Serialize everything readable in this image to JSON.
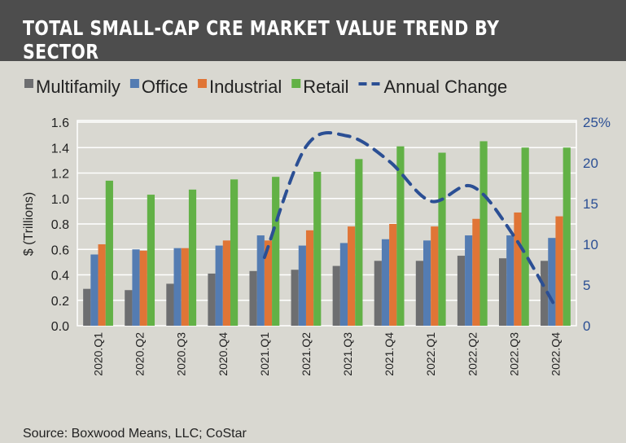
{
  "title": "TOTAL SMALL-CAP CRE MARKET VALUE TREND BY SECTOR",
  "source": "Source: Boxwood Means, LLC; CoStar",
  "chart_data": {
    "type": "bar",
    "title": "TOTAL SMALL-CAP CRE MARKET VALUE TREND BY SECTOR",
    "categories": [
      "2020.Q1",
      "2020.Q2",
      "2020.Q3",
      "2020.Q4",
      "2021.Q1",
      "2021.Q2",
      "2021.Q3",
      "2021.Q4",
      "2022.Q1",
      "2022.Q2",
      "2022.Q3",
      "2022.Q4"
    ],
    "ylabel": "$ (Trillions)",
    "ylim": [
      0,
      1.6
    ],
    "yticks": [
      "0.0",
      "0.2",
      "0.4",
      "0.6",
      "0.8",
      "1.0",
      "1.2",
      "1.4",
      "1.6"
    ],
    "y2lim": [
      0,
      25
    ],
    "y2ticks": [
      "0",
      "5",
      "10",
      "15",
      "20",
      "25%"
    ],
    "grid": true,
    "legend": "top",
    "series": [
      {
        "name": "Multifamily",
        "type": "bar",
        "axis": "left",
        "color": "#6d6e70",
        "values": [
          0.29,
          0.28,
          0.33,
          0.41,
          0.43,
          0.44,
          0.47,
          0.51,
          0.51,
          0.55,
          0.53,
          0.51
        ]
      },
      {
        "name": "Office",
        "type": "bar",
        "axis": "left",
        "color": "#547cb2",
        "values": [
          0.56,
          0.6,
          0.61,
          0.63,
          0.71,
          0.63,
          0.65,
          0.68,
          0.67,
          0.71,
          0.71,
          0.69
        ]
      },
      {
        "name": "Industrial",
        "type": "bar",
        "axis": "left",
        "color": "#e07536",
        "values": [
          0.64,
          0.59,
          0.61,
          0.67,
          0.67,
          0.75,
          0.78,
          0.8,
          0.78,
          0.84,
          0.89,
          0.86
        ]
      },
      {
        "name": "Retail",
        "type": "bar",
        "axis": "left",
        "color": "#62b146",
        "values": [
          1.14,
          1.03,
          1.07,
          1.15,
          1.17,
          1.21,
          1.31,
          1.41,
          1.36,
          1.45,
          1.4,
          1.4
        ]
      },
      {
        "name": "Annual Change",
        "type": "line",
        "style": "dashed",
        "axis": "right",
        "color": "#2b4f94",
        "values": [
          null,
          null,
          null,
          null,
          8.4,
          22.0,
          23.3,
          20.2,
          15.3,
          17.1,
          11.0,
          2.3
        ]
      }
    ]
  }
}
